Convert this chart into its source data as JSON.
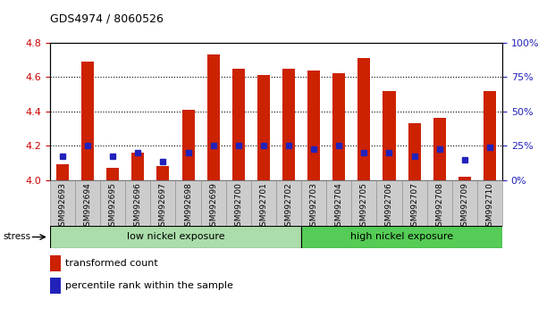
{
  "title": "GDS4974 / 8060526",
  "samples": [
    "GSM992693",
    "GSM992694",
    "GSM992695",
    "GSM992696",
    "GSM992697",
    "GSM992698",
    "GSM992699",
    "GSM992700",
    "GSM992701",
    "GSM992702",
    "GSM992703",
    "GSM992704",
    "GSM992705",
    "GSM992706",
    "GSM992707",
    "GSM992708",
    "GSM992709",
    "GSM992710"
  ],
  "red_values": [
    4.09,
    4.69,
    4.07,
    4.16,
    4.08,
    4.41,
    4.73,
    4.65,
    4.61,
    4.65,
    4.64,
    4.62,
    4.71,
    4.52,
    4.33,
    4.36,
    4.02,
    4.52
  ],
  "blue_values": [
    4.14,
    4.2,
    4.14,
    4.16,
    4.11,
    4.16,
    4.2,
    4.2,
    4.2,
    4.2,
    4.18,
    4.2,
    4.16,
    4.16,
    4.14,
    4.18,
    4.12,
    4.19
  ],
  "ylim_left": [
    4.0,
    4.8
  ],
  "ylim_right": [
    0,
    100
  ],
  "yticks_left": [
    4.0,
    4.2,
    4.4,
    4.6,
    4.8
  ],
  "yticks_right": [
    0,
    25,
    50,
    75,
    100
  ],
  "ytick_labels_right": [
    "0%",
    "25%",
    "50%",
    "75%",
    "100%"
  ],
  "bar_color": "#CC2200",
  "marker_color": "#2222BB",
  "bar_bottom": 4.0,
  "group1_label": "low nickel exposure",
  "group2_label": "high nickel exposure",
  "group1_count": 10,
  "stress_label": "stress",
  "legend1": "transformed count",
  "legend2": "percentile rank within the sample",
  "group1_color": "#AADDAA",
  "group2_color": "#55CC55",
  "left_tick_color": "#CC0000",
  "right_tick_color": "#2222BB",
  "xtick_bg_color": "#CCCCCC",
  "xtick_border_color": "#888888"
}
